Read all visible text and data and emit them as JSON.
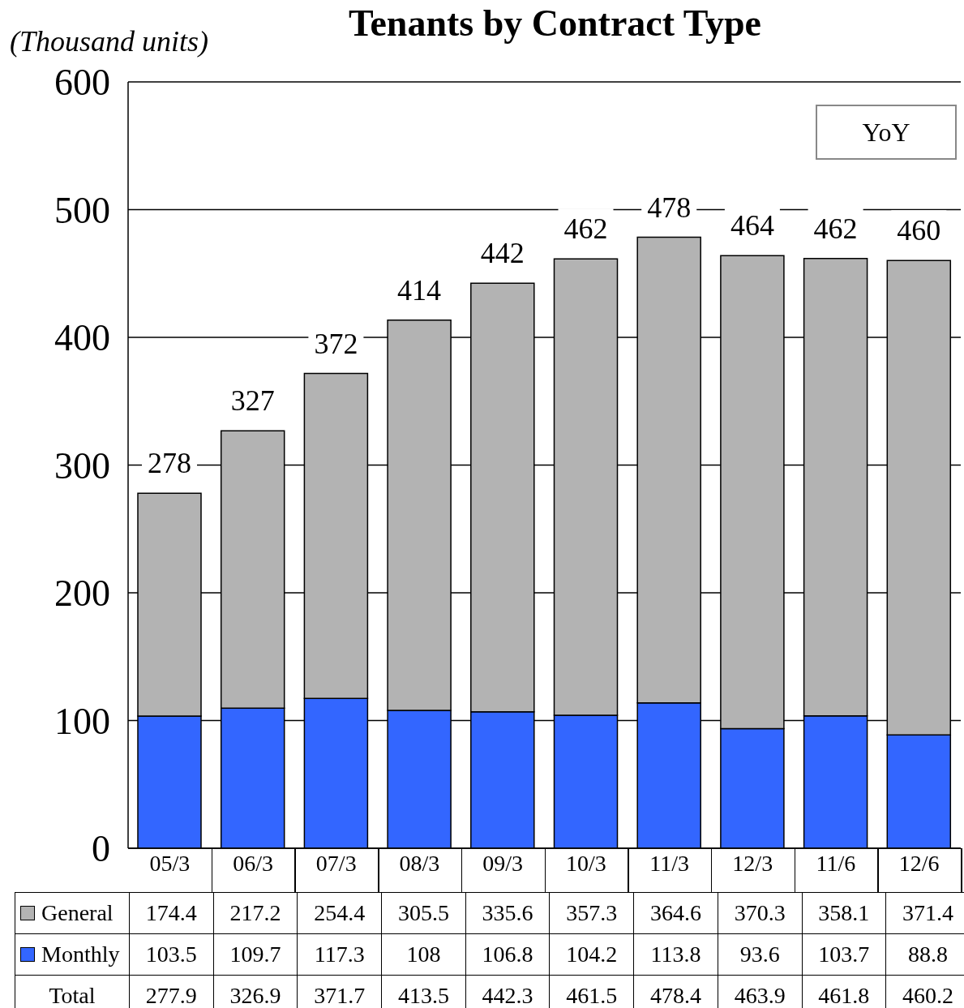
{
  "chart_data": {
    "type": "bar",
    "title": "Tenants by Contract Type",
    "ylabel": "(Thousand units)",
    "categories": [
      "05/3",
      "06/3",
      "07/3",
      "08/3",
      "09/3",
      "10/3",
      "11/3",
      "12/3",
      "11/6",
      "12/6"
    ],
    "stacked": true,
    "series": [
      {
        "name": "Monthly",
        "color": "#3366ff",
        "values": [
          103.5,
          109.7,
          117.3,
          108,
          106.8,
          104.2,
          113.8,
          93.6,
          103.7,
          88.8
        ]
      },
      {
        "name": "General",
        "color": "#b3b3b3",
        "values": [
          174.4,
          217.2,
          254.4,
          305.5,
          335.6,
          357.3,
          364.6,
          370.3,
          358.1,
          371.4
        ]
      }
    ],
    "ylim": [
      0,
      600
    ],
    "yticks": [
      0,
      100,
      200,
      300,
      400,
      500,
      600
    ],
    "grid": "y",
    "legend": "bottom",
    "data_labels": true,
    "totals": [
      "278",
      "327",
      "372",
      "414",
      "442",
      "462",
      "478",
      "464",
      "462",
      "460"
    ],
    "annotations": [
      "YoY",
      "Total",
      "277.9",
      "326.9",
      "371.7",
      "413.5",
      "442.3",
      "461.5",
      "478.4",
      "463.9",
      "461.8",
      "460.2"
    ]
  }
}
